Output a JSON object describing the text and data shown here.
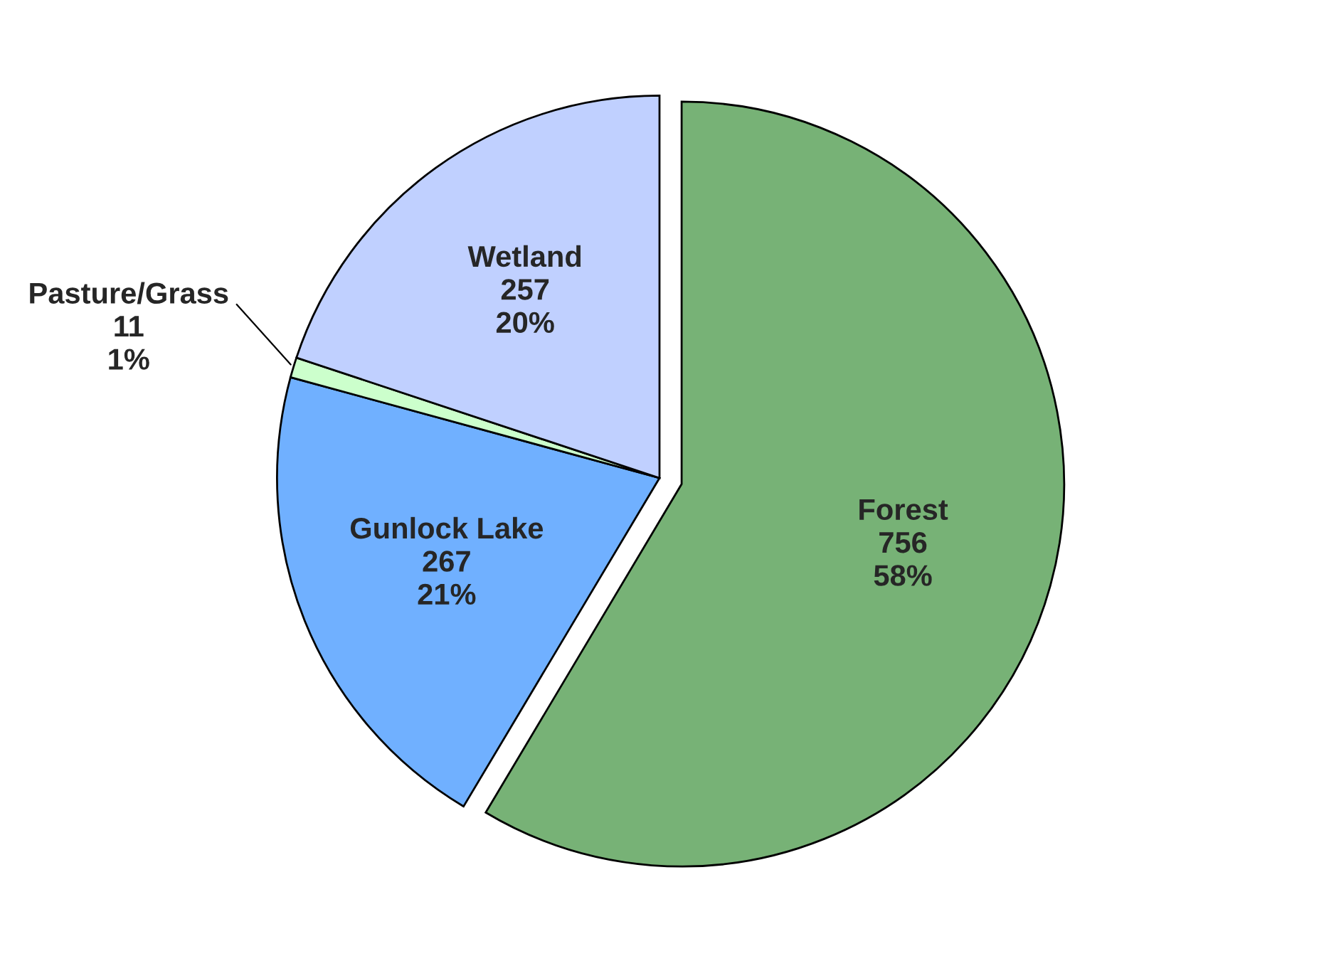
{
  "chart_data": {
    "type": "pie",
    "categories": [
      "Forest",
      "Gunlock Lake",
      "Pasture/Grass",
      "Wetland"
    ],
    "values": [
      756,
      267,
      11,
      257
    ],
    "value_labels": [
      "756\n58%",
      "267\n21%",
      "11\n1%",
      "257\n20%"
    ],
    "colors": [
      "#77b276",
      "#70b0ff",
      "#ccffcc",
      "#c0d0ff"
    ]
  }
}
